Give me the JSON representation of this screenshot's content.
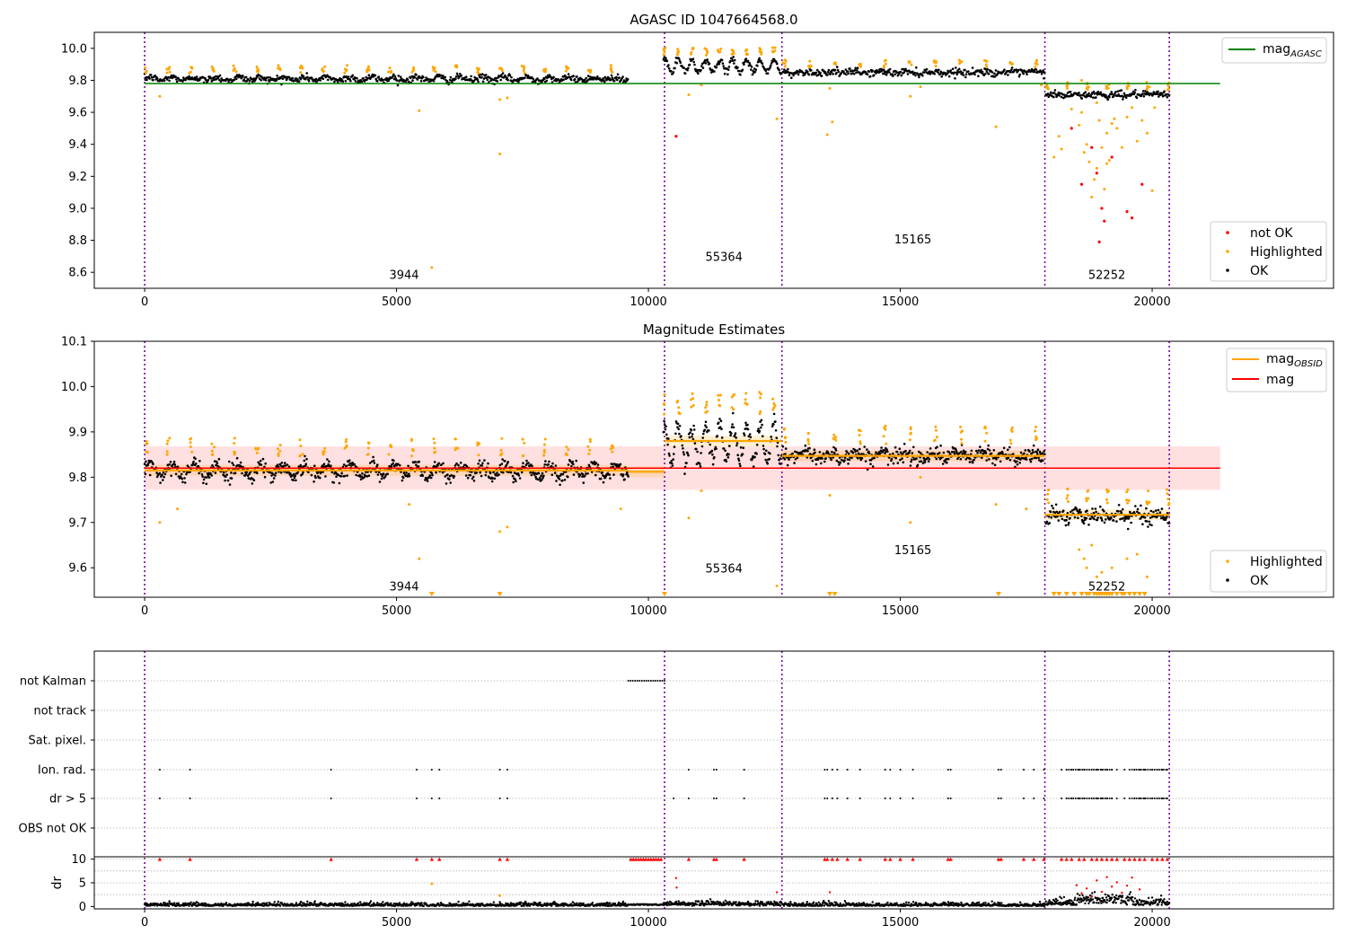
{
  "chart_data": [
    {
      "type": "scatter",
      "title": "AGASC ID 1047664568.0",
      "xlim": [
        -1000,
        23600
      ],
      "ylim": [
        8.5,
        10.1
      ],
      "xticks": [
        0,
        5000,
        10000,
        15000,
        20000
      ],
      "yticks": [
        8.6,
        8.8,
        9.0,
        9.2,
        9.4,
        9.6,
        9.8,
        10.0
      ],
      "vlines": [
        0,
        10320,
        12650,
        17870,
        20340
      ],
      "obsid_labels": [
        {
          "text": "3944",
          "x": 5150,
          "y": 8.56
        },
        {
          "text": "55364",
          "x": 11500,
          "y": 8.67
        },
        {
          "text": "15165",
          "x": 15250,
          "y": 8.78
        },
        {
          "text": "52252",
          "x": 19100,
          "y": 8.56
        }
      ],
      "reference_line": {
        "name": "mag_AGASC",
        "value": 9.78,
        "x": [
          0,
          21350
        ],
        "color": "#008000"
      },
      "segments": [
        {
          "x0": 0,
          "x1": 9600,
          "base": 9.81,
          "noise": 0.02,
          "wave": 0.01,
          "period": 440
        },
        {
          "x0": 10300,
          "x1": 12650,
          "base": 9.89,
          "noise": 0.02,
          "wave": 0.04,
          "period": 270
        },
        {
          "x0": 12670,
          "x1": 17870,
          "base": 9.85,
          "noise": 0.02,
          "wave": 0.005,
          "period": 500
        },
        {
          "x0": 17890,
          "x1": 20340,
          "base": 9.71,
          "noise": 0.02,
          "wave": 0.005,
          "period": 400
        }
      ],
      "highlighted_outliers": [
        [
          300,
          9.7
        ],
        [
          5450,
          9.61
        ],
        [
          5700,
          8.63
        ],
        [
          7050,
          9.68
        ],
        [
          7200,
          9.69
        ],
        [
          7050,
          9.34
        ],
        [
          10800,
          9.71
        ],
        [
          11050,
          9.77
        ],
        [
          12550,
          9.56
        ],
        [
          13550,
          9.46
        ],
        [
          13650,
          9.54
        ],
        [
          13600,
          9.75
        ],
        [
          15200,
          9.7
        ],
        [
          15400,
          9.76
        ],
        [
          16900,
          9.51
        ],
        [
          17800,
          9.77
        ],
        [
          18050,
          9.32
        ],
        [
          18150,
          9.45
        ],
        [
          18200,
          9.37
        ],
        [
          18400,
          9.62
        ],
        [
          18550,
          9.52
        ],
        [
          18600,
          9.6
        ],
        [
          18650,
          9.35
        ],
        [
          18700,
          9.4
        ],
        [
          18750,
          9.29
        ],
        [
          18800,
          9.07
        ],
        [
          18850,
          9.18
        ],
        [
          18900,
          9.25
        ],
        [
          18950,
          9.55
        ],
        [
          19000,
          9.38
        ],
        [
          19050,
          9.12
        ],
        [
          19100,
          9.47
        ],
        [
          19150,
          9.3
        ],
        [
          19200,
          9.53
        ],
        [
          19300,
          9.5
        ],
        [
          19400,
          9.38
        ],
        [
          19500,
          9.57
        ],
        [
          19600,
          9.63
        ],
        [
          19700,
          9.42
        ],
        [
          19800,
          9.55
        ],
        [
          19900,
          9.47
        ],
        [
          20000,
          9.11
        ],
        [
          20050,
          9.63
        ],
        [
          18600,
          9.8
        ],
        [
          18700,
          9.75
        ],
        [
          18900,
          9.66
        ],
        [
          19100,
          9.28
        ],
        [
          19250,
          9.56
        ]
      ],
      "not_ok_points": [
        [
          10550,
          9.45
        ],
        [
          18600,
          9.15
        ],
        [
          18900,
          9.22
        ],
        [
          19000,
          9.0
        ],
        [
          19050,
          8.92
        ],
        [
          18950,
          8.79
        ],
        [
          19200,
          9.32
        ],
        [
          19500,
          8.98
        ],
        [
          19600,
          8.94
        ],
        [
          19800,
          9.15
        ],
        [
          18800,
          9.38
        ],
        [
          18400,
          9.5
        ]
      ],
      "legend_top": {
        "position": "upper right",
        "entries": [
          {
            "label": "mag",
            "sub": "AGASC",
            "color": "#008000"
          }
        ]
      },
      "legend_bottom": {
        "position": "lower right",
        "entries": [
          {
            "label": "not OK",
            "color": "#ff0000"
          },
          {
            "label": "Highlighted",
            "color": "#ffa500"
          },
          {
            "label": "OK",
            "color": "#000000"
          }
        ]
      }
    },
    {
      "type": "scatter",
      "title": "Magnitude Estimates",
      "xlim": [
        -1000,
        23600
      ],
      "ylim": [
        9.535,
        10.1
      ],
      "xticks": [
        0,
        5000,
        10000,
        15000,
        20000
      ],
      "yticks": [
        9.6,
        9.7,
        9.8,
        9.9,
        10.0,
        10.1
      ],
      "vlines": [
        0,
        10320,
        12650,
        17870,
        20340
      ],
      "obsid_labels": [
        {
          "text": "3944",
          "x": 5150,
          "y": 9.55
        },
        {
          "text": "55364",
          "x": 11500,
          "y": 9.59
        },
        {
          "text": "15165",
          "x": 15250,
          "y": 9.63
        },
        {
          "text": "52252",
          "x": 19100,
          "y": 9.55
        }
      ],
      "mag_line": {
        "name": "mag",
        "value": 9.82,
        "band": [
          9.772,
          9.868
        ],
        "x": [
          0,
          21350
        ],
        "color": "#ff0000"
      },
      "obsid_mags": [
        {
          "x0": 0,
          "x1": 9600,
          "value": 9.815
        },
        {
          "x0": 9600,
          "x1": 10320,
          "value": 9.812
        },
        {
          "x0": 10320,
          "x1": 12650,
          "value": 9.88
        },
        {
          "x0": 12650,
          "x1": 17870,
          "value": 9.847
        },
        {
          "x0": 17870,
          "x1": 20340,
          "value": 9.717
        }
      ],
      "segments": [
        {
          "x0": 0,
          "x1": 9600,
          "base": 9.815,
          "noise": 0.016,
          "wave": 0.012,
          "period": 440
        },
        {
          "x0": 10300,
          "x1": 12650,
          "base": 9.875,
          "noise": 0.02,
          "wave": 0.04,
          "period": 270
        },
        {
          "x0": 12670,
          "x1": 17870,
          "base": 9.848,
          "noise": 0.016,
          "wave": 0.006,
          "period": 500
        },
        {
          "x0": 17890,
          "x1": 20340,
          "base": 9.715,
          "noise": 0.015,
          "wave": 0.005,
          "period": 400
        }
      ],
      "highlighted_outliers": [
        [
          300,
          9.7
        ],
        [
          650,
          9.73
        ],
        [
          5450,
          9.62
        ],
        [
          5250,
          9.74
        ],
        [
          7050,
          9.68
        ],
        [
          7200,
          9.69
        ],
        [
          9450,
          9.73
        ],
        [
          10800,
          9.71
        ],
        [
          11050,
          9.77
        ],
        [
          12550,
          9.56
        ],
        [
          13600,
          9.76
        ],
        [
          15200,
          9.7
        ],
        [
          15400,
          9.8
        ],
        [
          16900,
          9.74
        ],
        [
          17500,
          9.73
        ],
        [
          18550,
          9.64
        ],
        [
          18650,
          9.62
        ],
        [
          18700,
          9.6
        ],
        [
          18800,
          9.65
        ],
        [
          18900,
          9.58
        ],
        [
          19000,
          9.59
        ],
        [
          19200,
          9.6
        ],
        [
          19500,
          9.62
        ],
        [
          19700,
          9.63
        ],
        [
          19900,
          9.58
        ]
      ],
      "lower_limit_markers": [
        5700,
        7050,
        10320,
        13600,
        13700,
        16950,
        18050,
        18150,
        18300,
        18450,
        18600,
        18700,
        18750,
        18850,
        18900,
        18950,
        19000,
        19050,
        19100,
        19150,
        19200,
        19300,
        19400,
        19450,
        19550,
        19650,
        19750,
        19850
      ],
      "legend_top": {
        "position": "upper right",
        "entries": [
          {
            "label": "mag",
            "sub": "OBSID",
            "color": "#ffa500"
          },
          {
            "label": "mag",
            "color": "#ff0000"
          }
        ]
      },
      "legend_bottom": {
        "position": "lower right",
        "entries": [
          {
            "label": "Highlighted",
            "color": "#ffa500"
          },
          {
            "label": "OK",
            "color": "#000000"
          }
        ]
      }
    },
    {
      "type": "scatter",
      "xlim": [
        -1000,
        23600
      ],
      "xticks": [
        0,
        5000,
        10000,
        15000,
        20000
      ],
      "vlines": [
        0,
        10320,
        12650,
        17870,
        20340
      ],
      "flag_rows": [
        "not Kalman",
        "not track",
        "Sat. pixel.",
        "Ion. rad.",
        "dr > 5",
        "OBS not OK"
      ],
      "flags": {
        "not Kalman": {
          "ranges": [
            [
              9600,
              10320
            ]
          ]
        },
        "not track": {
          "ranges": []
        },
        "Sat. pixel.": {
          "ranges": []
        },
        "Ion. rad.": {
          "points": [
            300,
            900,
            3700,
            5400,
            5700,
            5850,
            7050,
            7200,
            10800,
            11300,
            11350,
            11900,
            13500,
            13550,
            13650,
            13750,
            13950,
            14200,
            14700,
            14800,
            15000,
            15250,
            15950,
            16000,
            16950,
            17000,
            17450,
            17650,
            17850,
            18200,
            18300,
            18400,
            18550,
            18650,
            18800,
            18900,
            19000,
            19100,
            19200,
            19300,
            19450,
            19550,
            19650,
            19750,
            19850,
            20000,
            20100,
            20200,
            20300
          ],
          "ranges": [
            [
              18300,
              19200
            ],
            [
              19600,
              20300
            ]
          ]
        },
        "dr > 5": {
          "points": [
            300,
            900,
            3700,
            5400,
            5700,
            5850,
            7050,
            7200,
            10500,
            10800,
            11300,
            11350,
            11900,
            13500,
            13550,
            13650,
            13750,
            13950,
            14200,
            14700,
            14800,
            15000,
            15250,
            15950,
            16000,
            16950,
            17000,
            17450,
            17650,
            17850,
            18200,
            18300,
            18400,
            18550,
            18650,
            18800,
            18900,
            19000,
            19100,
            19200,
            19300,
            19450,
            19550,
            19650,
            19750,
            19850,
            20000,
            20100,
            20200,
            20300
          ],
          "ranges": [
            [
              18300,
              19200
            ],
            [
              19600,
              20300
            ]
          ]
        },
        "OBS not OK": {
          "ranges": []
        }
      },
      "dr_panel": {
        "ylabel": "dr",
        "ylim": [
          -0.5,
          10.5
        ],
        "yticks": [
          0,
          5,
          10
        ],
        "clip_value": 10,
        "clipped_points": [
          300,
          900,
          3700,
          5400,
          5700,
          5850,
          7050,
          7200,
          9650,
          9700,
          9750,
          9800,
          9850,
          9900,
          9950,
          10000,
          10050,
          10100,
          10150,
          10200,
          10250,
          10800,
          11300,
          11350,
          11900,
          13500,
          13550,
          13650,
          13750,
          13950,
          14200,
          14700,
          14800,
          15000,
          15250,
          15950,
          16000,
          16950,
          17000,
          17450,
          17650,
          17850,
          18200,
          18300,
          18400,
          18550,
          18650,
          18800,
          18900,
          19000,
          19100,
          19200,
          19300,
          19450,
          19550,
          19650,
          19750,
          19850,
          20000,
          20100,
          20200,
          20300
        ],
        "red_points": [
          [
            10550,
            6
          ],
          [
            10560,
            4
          ],
          [
            12550,
            3
          ],
          [
            13600,
            3
          ],
          [
            18500,
            4.5
          ],
          [
            18700,
            3.8
          ],
          [
            18900,
            5.5
          ],
          [
            19000,
            3.1
          ],
          [
            19100,
            6.2
          ],
          [
            19200,
            4.2
          ],
          [
            19300,
            5.1
          ],
          [
            19500,
            4.4
          ],
          [
            19600,
            6.1
          ],
          [
            19750,
            3.6
          ],
          [
            18600,
            2.8
          ],
          [
            18800,
            2.2
          ],
          [
            19400,
            2.9
          ]
        ],
        "highlighted_points": [
          [
            5700,
            4.8
          ],
          [
            7050,
            2.3
          ]
        ]
      }
    }
  ]
}
